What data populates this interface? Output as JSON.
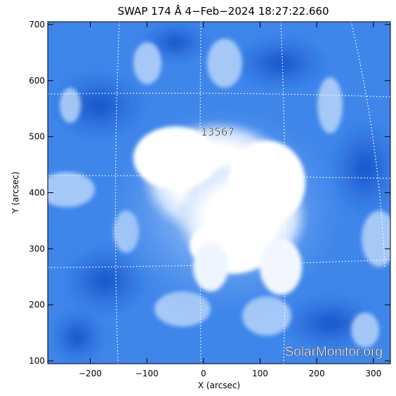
{
  "title": "SWAP 174 Å  4−Feb−2024 18:27:22.660",
  "xlabel": "X (arcsec)",
  "ylabel": "Y (arcsec)",
  "x_ticks": [
    "−200",
    "−100",
    "0",
    "100",
    "200",
    "300"
  ],
  "y_ticks": [
    "100",
    "200",
    "300",
    "400",
    "500",
    "600",
    "700"
  ],
  "region_label": "13567",
  "watermark": "SolarMonitor.org",
  "colors": {
    "background": "#ffffff",
    "deep_blue": "#1a5fd6",
    "mid_blue": "#4f93ee",
    "light_blue": "#a9cbf7",
    "core_white": "#ffffff",
    "grid": "#ffffff",
    "text": "#000000"
  },
  "image": {
    "instrument": "SWAP 174 Å",
    "x_range": [
      -275,
      330
    ],
    "y_range": [
      95,
      705
    ],
    "grid": "dotted heliographic lines",
    "active_region": {
      "label": "13567",
      "x": 10,
      "y": 500
    },
    "bright_core_center": [
      60,
      420
    ]
  }
}
